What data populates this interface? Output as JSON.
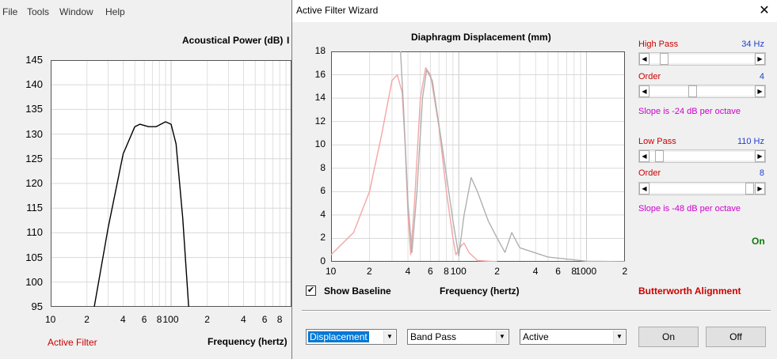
{
  "background_app": {
    "menu": [
      "File",
      "Tools",
      "Window",
      "Help"
    ],
    "chart_title": "Acoustical Power (dB)",
    "chart_title_extra": "I",
    "status_label": "Active Filter",
    "x_axis_label": "Frequency (hertz)",
    "y_ticks": [
      "145",
      "140",
      "135",
      "130",
      "125",
      "120",
      "115",
      "110",
      "105",
      "100",
      "95"
    ],
    "x_ticks": [
      "10",
      "2",
      "4",
      "6",
      "8",
      "100",
      "2",
      "4",
      "6",
      "8"
    ]
  },
  "dialog": {
    "title": "Active Filter Wizard",
    "close_glyph": "✕",
    "chart_title": "Diaphragm Displacement (mm)",
    "y_ticks": [
      "18",
      "16",
      "14",
      "12",
      "10",
      "8",
      "6",
      "4",
      "2",
      "0"
    ],
    "x_ticks": [
      "10",
      "2",
      "4",
      "6",
      "8",
      "100",
      "2",
      "4",
      "6",
      "8",
      "1000",
      "2"
    ],
    "x_axis_label": "Frequency (hertz)",
    "show_baseline_label": "Show Baseline",
    "show_baseline_checked": "✔",
    "alignment_label": "Butterworth Alignment",
    "high_pass": {
      "label": "High Pass",
      "value": "34 Hz",
      "slider_level": 0.1
    },
    "high_pass_order": {
      "label": "Order",
      "value": "4",
      "slider_level": 0.4
    },
    "high_pass_slope": "Slope is -24 dB per octave",
    "low_pass": {
      "label": "Low Pass",
      "value": "110 Hz",
      "slider_level": 0.05
    },
    "low_pass_order": {
      "label": "Order",
      "value": "8",
      "slider_level": 1.0
    },
    "low_pass_slope": "Slope is -48 dB per octave",
    "status": "On",
    "combo_type": "Displacement",
    "combo_mode": "Band Pass",
    "combo_active": "Active",
    "btn_on": "On",
    "btn_off": "Off",
    "colors": {
      "red": "#cc0000",
      "blue": "#1e3fcc",
      "magenta": "#cc00cc",
      "green": "#0b7a0b",
      "filter_curve": "#f4a6a6",
      "baseline_curve": "#b0b0b0"
    }
  },
  "chart_data": [
    {
      "type": "line",
      "title": "Acoustical Power (dB)",
      "xlabel": "Frequency (hertz)",
      "ylabel": "",
      "xscale": "log",
      "xlim": [
        10,
        1000
      ],
      "ylim": [
        95,
        145
      ],
      "series": [
        {
          "values": [
            [
              23,
              95
            ],
            [
              30,
              111
            ],
            [
              40,
              126
            ],
            [
              50,
              131.5
            ],
            [
              55,
              132
            ],
            [
              65,
              131.5
            ],
            [
              75,
              131.5
            ],
            [
              90,
              132.5
            ],
            [
              100,
              132
            ],
            [
              110,
              128
            ],
            [
              125,
              113
            ],
            [
              140,
              95
            ]
          ]
        }
      ]
    },
    {
      "type": "line",
      "title": "Diaphragm Displacement (mm)",
      "xlabel": "Frequency (hertz)",
      "ylabel": "",
      "xscale": "log",
      "xlim": [
        10,
        2000
      ],
      "ylim": [
        0,
        18
      ],
      "series": [
        {
          "values": [
            [
              10,
              0.6
            ],
            [
              15,
              2.5
            ],
            [
              20,
              6
            ],
            [
              25,
              11
            ],
            [
              30,
              15.5
            ],
            [
              33,
              16
            ],
            [
              36,
              14.5
            ],
            [
              38,
              10
            ],
            [
              40,
              4
            ],
            [
              42,
              0.6
            ],
            [
              45,
              5
            ],
            [
              50,
              14
            ],
            [
              55,
              16.6
            ],
            [
              60,
              16
            ],
            [
              70,
              11.5
            ],
            [
              80,
              6
            ],
            [
              90,
              2
            ],
            [
              95,
              0.6
            ],
            [
              105,
              1.4
            ],
            [
              110,
              1.6
            ],
            [
              120,
              0.8
            ],
            [
              140,
              0.1
            ],
            [
              200,
              0
            ]
          ]
        },
        {
          "values": [
            [
              35,
              18
            ],
            [
              37,
              13
            ],
            [
              40,
              5
            ],
            [
              43,
              0.8
            ],
            [
              47,
              6
            ],
            [
              52,
              14
            ],
            [
              56,
              16.4
            ],
            [
              62,
              15.5
            ],
            [
              75,
              9.5
            ],
            [
              90,
              3.5
            ],
            [
              100,
              0.5
            ],
            [
              110,
              4
            ],
            [
              125,
              7.2
            ],
            [
              140,
              6
            ],
            [
              170,
              3.5
            ],
            [
              200,
              2
            ],
            [
              230,
              0.8
            ],
            [
              260,
              2.5
            ],
            [
              300,
              1.2
            ],
            [
              500,
              0.4
            ],
            [
              1000,
              0.05
            ],
            [
              2000,
              0
            ]
          ]
        }
      ]
    }
  ]
}
